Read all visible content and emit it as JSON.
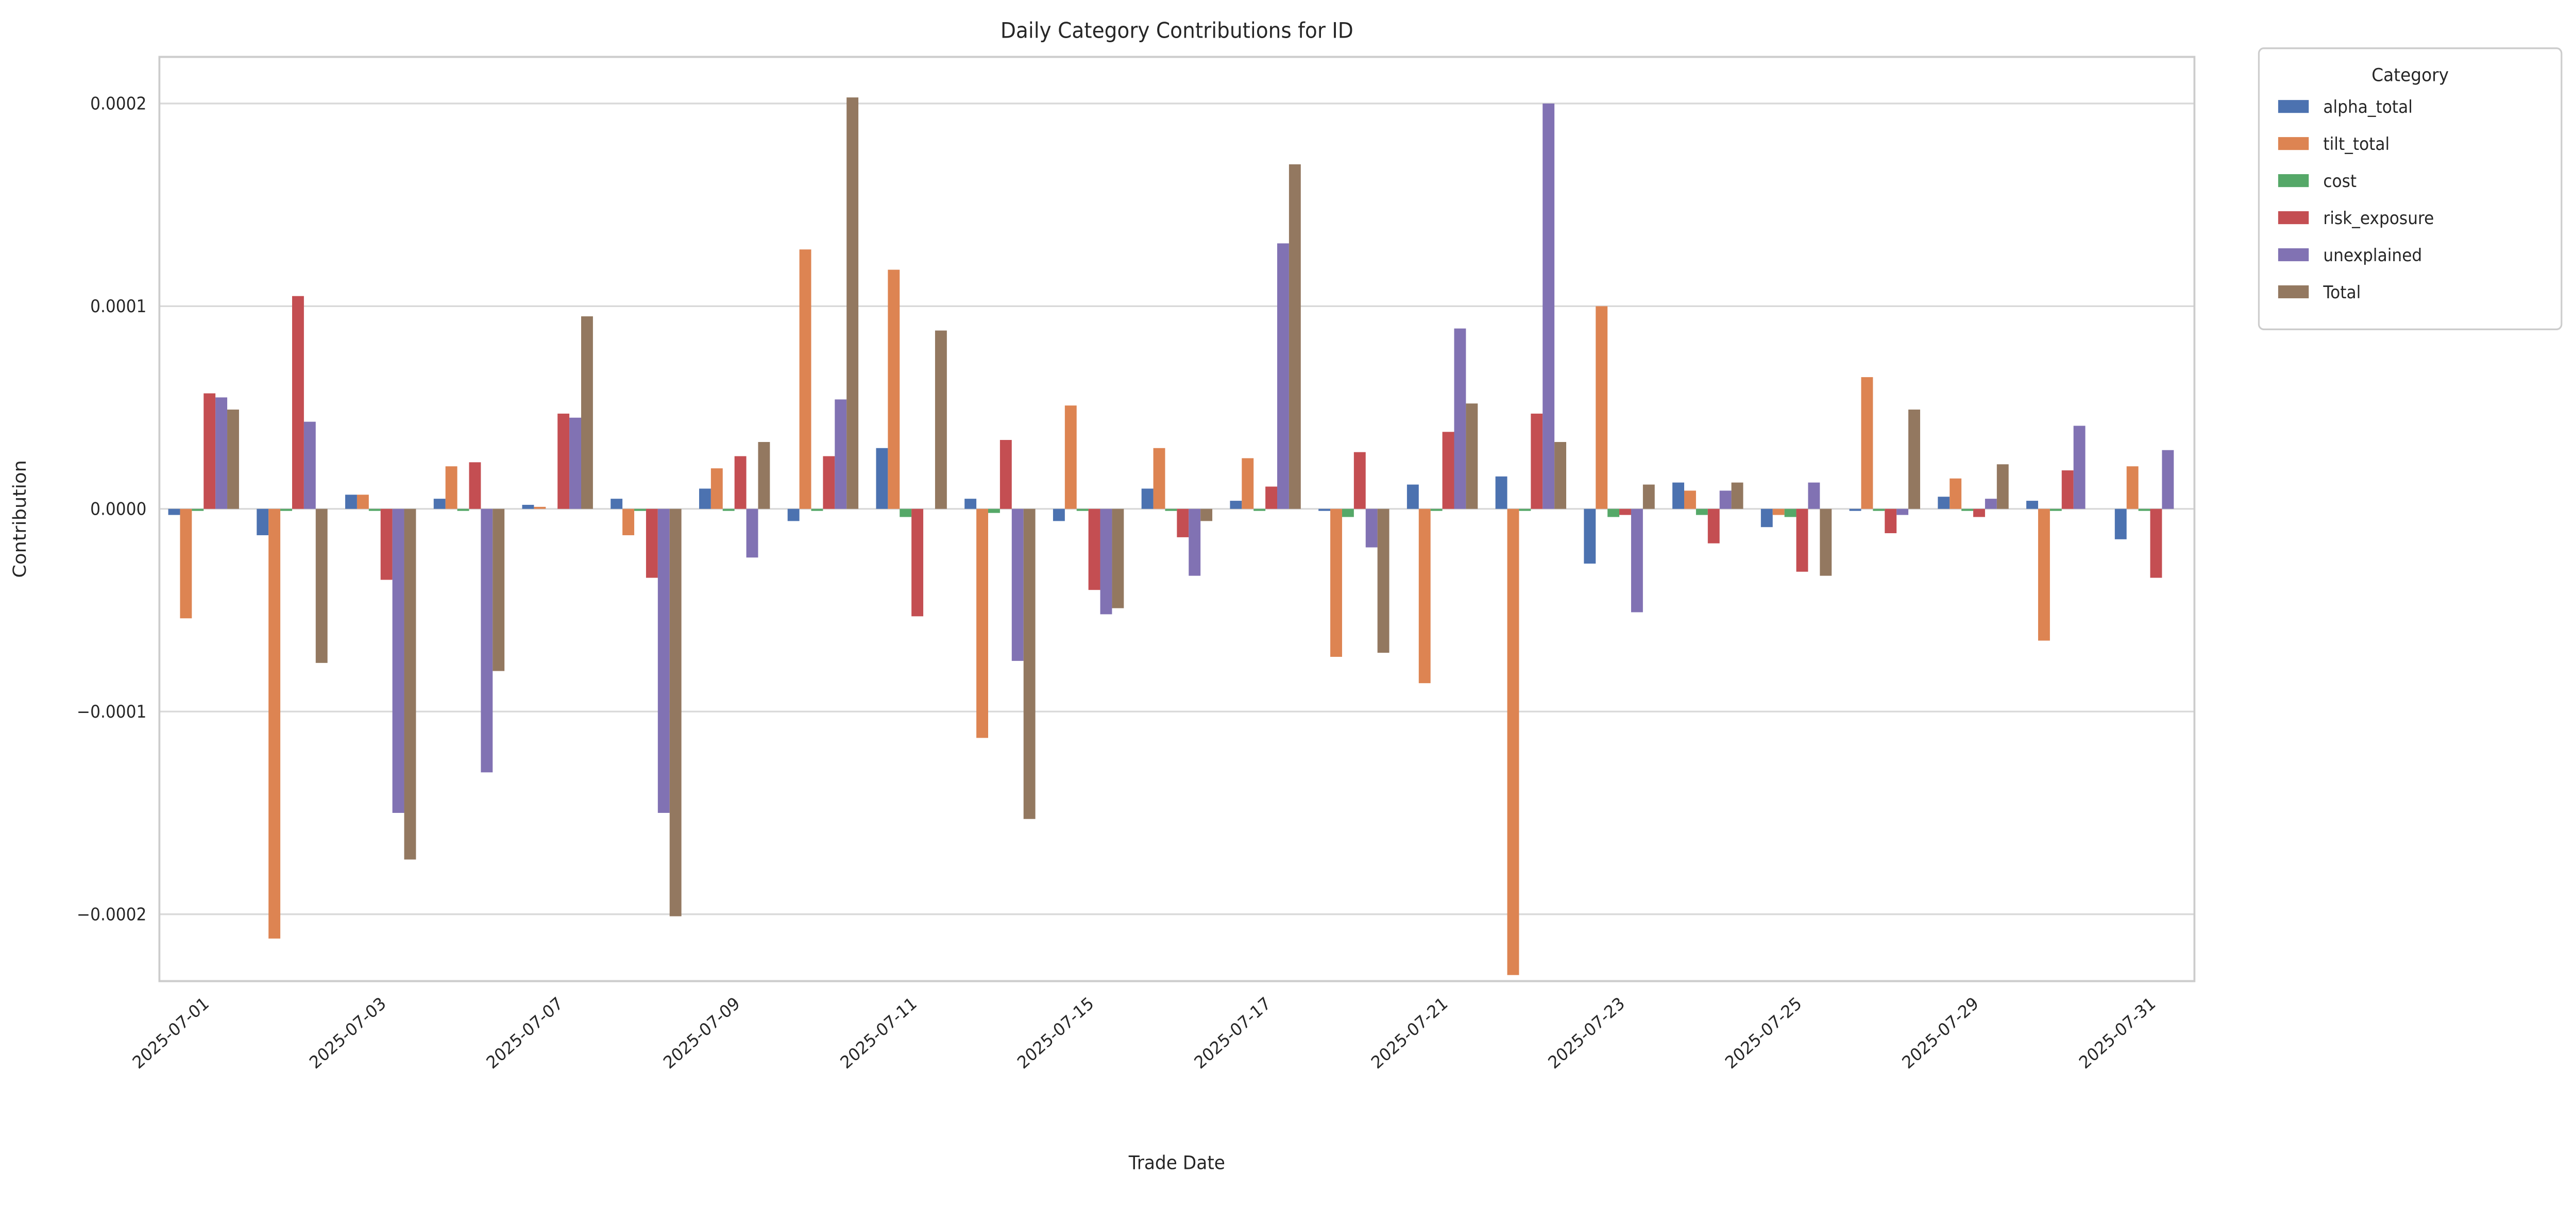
{
  "chart_data": {
    "type": "bar",
    "title": "Daily Category Contributions for ID",
    "xlabel": "Trade Date",
    "ylabel": "Contribution",
    "categories": [
      "2025-07-01",
      "2025-07-02",
      "2025-07-03",
      "2025-07-04",
      "2025-07-07",
      "2025-07-08",
      "2025-07-09",
      "2025-07-10",
      "2025-07-11",
      "2025-07-14",
      "2025-07-15",
      "2025-07-16",
      "2025-07-17",
      "2025-07-18",
      "2025-07-21",
      "2025-07-22",
      "2025-07-23",
      "2025-07-24",
      "2025-07-25",
      "2025-07-28",
      "2025-07-29",
      "2025-07-30",
      "2025-07-31"
    ],
    "x_tick_indices": [
      0,
      2,
      4,
      6,
      8,
      10,
      12,
      14,
      16,
      18,
      20,
      22
    ],
    "y_ticks": [
      {
        "value": 0.0002,
        "label": "0.0002"
      },
      {
        "value": 0.0001,
        "label": "0.0001"
      },
      {
        "value": 0.0,
        "label": "0.0000"
      },
      {
        "value": -0.0001,
        "label": "−0.0001"
      },
      {
        "value": -0.0002,
        "label": "−0.0002"
      }
    ],
    "ylim": [
      -0.000233,
      0.000223
    ],
    "grid": true,
    "legend": {
      "title": "Category",
      "position": "outside-upper-right"
    },
    "series": [
      {
        "name": "alpha_total",
        "color": "#4c72b0",
        "values": [
          -3e-06,
          -1.3e-05,
          7e-06,
          5e-06,
          2e-06,
          5e-06,
          1e-05,
          -6e-06,
          3e-05,
          5e-06,
          -6e-06,
          1e-05,
          4e-06,
          -1e-06,
          1.2e-05,
          1.6e-05,
          -2.7e-05,
          1.3e-05,
          -9e-06,
          -1e-06,
          6e-06,
          4e-06,
          -1.5e-05
        ]
      },
      {
        "name": "tilt_total",
        "color": "#dd8452",
        "values": [
          -5.4e-05,
          -0.000212,
          7e-06,
          2.1e-05,
          1e-06,
          -1.3e-05,
          2e-05,
          0.000128,
          0.000118,
          -0.000113,
          5.1e-05,
          3e-05,
          2.5e-05,
          -7.3e-05,
          -8.6e-05,
          -0.00023,
          0.0001,
          9e-06,
          -3e-06,
          6.5e-05,
          1.5e-05,
          -6.5e-05,
          2.1e-05
        ]
      },
      {
        "name": "cost",
        "color": "#55a868",
        "values": [
          -1e-06,
          -1e-06,
          -1e-06,
          -1e-06,
          0,
          -1e-06,
          -1e-06,
          -1e-06,
          -4e-06,
          -2e-06,
          -1e-06,
          -1e-06,
          -1e-06,
          -4e-06,
          -1e-06,
          -1e-06,
          -4e-06,
          -3e-06,
          -4e-06,
          -1e-06,
          -1e-06,
          -1e-06,
          -1e-06
        ]
      },
      {
        "name": "risk_exposure",
        "color": "#c44e52",
        "values": [
          5.7e-05,
          0.000105,
          -3.5e-05,
          2.3e-05,
          4.7e-05,
          -3.4e-05,
          2.6e-05,
          2.6e-05,
          -5.3e-05,
          3.4e-05,
          -4e-05,
          -1.4e-05,
          1.1e-05,
          2.8e-05,
          3.8e-05,
          4.7e-05,
          -3e-06,
          -1.7e-05,
          -3.1e-05,
          -1.2e-05,
          -4e-06,
          1.9e-05,
          -3.4e-05
        ]
      },
      {
        "name": "unexplained",
        "color": "#8172b3",
        "values": [
          5.5e-05,
          4.3e-05,
          -0.00015,
          -0.00013,
          4.5e-05,
          -0.00015,
          -2.4e-05,
          5.4e-05,
          0,
          -7.5e-05,
          -5.2e-05,
          -3.3e-05,
          0.000131,
          -1.9e-05,
          8.9e-05,
          0.0002,
          -5.1e-05,
          9e-06,
          1.3e-05,
          -3e-06,
          5e-06,
          4.1e-05,
          2.9e-05
        ]
      },
      {
        "name": "Total",
        "color": "#937860",
        "values": [
          4.9e-05,
          -7.6e-05,
          -0.000173,
          -8e-05,
          9.5e-05,
          -0.000201,
          3.3e-05,
          0.000203,
          8.8e-05,
          -0.000153,
          -4.9e-05,
          -6e-06,
          0.00017,
          -7.1e-05,
          5.2e-05,
          3.3e-05,
          1.2e-05,
          1.3e-05,
          -3.3e-05,
          4.9e-05,
          2.2e-05,
          0,
          0
        ]
      }
    ]
  },
  "colors": {
    "background": "#ffffff",
    "grid": "#d9d9d9",
    "spine": "#cccccc",
    "text": "#262626",
    "legend_border": "#cccccc"
  }
}
